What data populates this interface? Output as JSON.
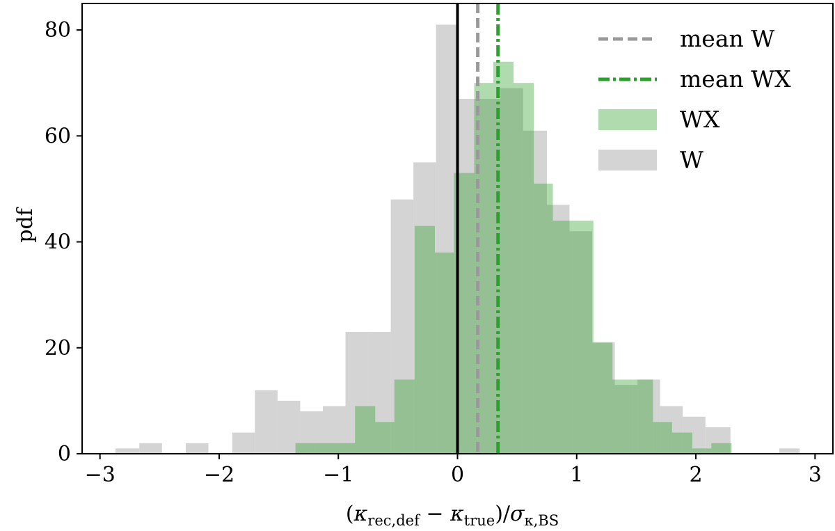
{
  "chart_data": {
    "type": "histogram",
    "xlabel": "(κ_rec,def − κ_true)/σ_κ,BS",
    "xlabel_parts": {
      "open": "(",
      "k1": "κ",
      "k1_sub": "rec,def",
      "minus": " − ",
      "k2": "κ",
      "k2_sub": "true",
      "close": ")/",
      "sigma": "σ",
      "sigma_sub": "κ,BS"
    },
    "ylabel": "pdf",
    "xlim": [
      -3.15,
      3.15
    ],
    "ylim": [
      0,
      85
    ],
    "xticks": [
      -3,
      -2,
      -1,
      0,
      1,
      2,
      3
    ],
    "xtick_labels": [
      "−3",
      "−2",
      "−1",
      "0",
      "1",
      "2",
      "3"
    ],
    "yticks": [
      0,
      20,
      40,
      60,
      80
    ],
    "ytick_labels": [
      "0",
      "20",
      "40",
      "60",
      "80"
    ],
    "legend_position": "top-right",
    "series": [
      {
        "name": "W",
        "color": "#bfbfbf",
        "opacity": 0.68,
        "bins": [
          [
            -2.87,
            -2.67,
            1
          ],
          [
            -2.67,
            -2.48,
            2
          ],
          [
            -2.48,
            -2.28,
            0
          ],
          [
            -2.28,
            -2.09,
            2
          ],
          [
            -2.09,
            -1.89,
            0
          ],
          [
            -1.89,
            -1.7,
            4
          ],
          [
            -1.7,
            -1.51,
            12
          ],
          [
            -1.51,
            -1.32,
            10
          ],
          [
            -1.32,
            -1.13,
            8
          ],
          [
            -1.13,
            -0.94,
            9
          ],
          [
            -0.94,
            -0.75,
            23
          ],
          [
            -0.75,
            -0.56,
            23
          ],
          [
            -0.56,
            -0.37,
            48
          ],
          [
            -0.37,
            -0.18,
            55
          ],
          [
            -0.18,
            -0.01,
            81
          ],
          [
            -0.01,
            0.17,
            67
          ],
          [
            0.17,
            0.36,
            67
          ],
          [
            0.36,
            0.55,
            69
          ],
          [
            0.55,
            0.75,
            61
          ],
          [
            0.75,
            0.94,
            47
          ],
          [
            0.94,
            1.13,
            42
          ],
          [
            1.13,
            1.32,
            21
          ],
          [
            1.32,
            1.51,
            13
          ],
          [
            1.51,
            1.7,
            14
          ],
          [
            1.7,
            1.89,
            9
          ],
          [
            1.89,
            2.08,
            7
          ],
          [
            2.08,
            2.29,
            5
          ],
          [
            2.29,
            2.7,
            0
          ],
          [
            2.7,
            2.87,
            1
          ]
        ]
      },
      {
        "name": "WX",
        "color": "#2ca02c",
        "opacity": 0.38,
        "bins": [
          [
            -1.36,
            -1.19,
            2
          ],
          [
            -1.19,
            -1.03,
            2
          ],
          [
            -1.03,
            -0.86,
            2
          ],
          [
            -0.86,
            -0.69,
            9
          ],
          [
            -0.69,
            -0.53,
            6
          ],
          [
            -0.53,
            -0.36,
            14
          ],
          [
            -0.36,
            -0.19,
            43
          ],
          [
            -0.19,
            -0.03,
            38
          ],
          [
            -0.03,
            0.14,
            53
          ],
          [
            0.14,
            0.3,
            70
          ],
          [
            0.3,
            0.47,
            74
          ],
          [
            0.47,
            0.64,
            70
          ],
          [
            0.64,
            0.8,
            51
          ],
          [
            0.8,
            0.97,
            44
          ],
          [
            0.97,
            1.14,
            44
          ],
          [
            1.14,
            1.3,
            21
          ],
          [
            1.3,
            1.47,
            14
          ],
          [
            1.47,
            1.64,
            14
          ],
          [
            1.64,
            1.8,
            6
          ],
          [
            1.8,
            1.97,
            4
          ],
          [
            1.97,
            2.13,
            1
          ],
          [
            2.13,
            2.3,
            2
          ]
        ]
      }
    ],
    "vlines": [
      {
        "name": "zero",
        "x": 0.0,
        "color": "#000000",
        "style": "solid"
      },
      {
        "name": "mean W",
        "x": 0.17,
        "color": "#999999",
        "style": "dashed"
      },
      {
        "name": "mean WX",
        "x": 0.34,
        "color": "#2ca02c",
        "style": "dashdot"
      }
    ],
    "legend": [
      {
        "label": "mean W",
        "kind": "line",
        "color": "#999999",
        "style": "dashed"
      },
      {
        "label": "mean WX",
        "kind": "line",
        "color": "#2ca02c",
        "style": "dashdot"
      },
      {
        "label": "WX",
        "kind": "patch",
        "color": "#2ca02c",
        "opacity": 0.38
      },
      {
        "label": "W",
        "kind": "patch",
        "color": "#bfbfbf",
        "opacity": 0.68
      }
    ]
  }
}
